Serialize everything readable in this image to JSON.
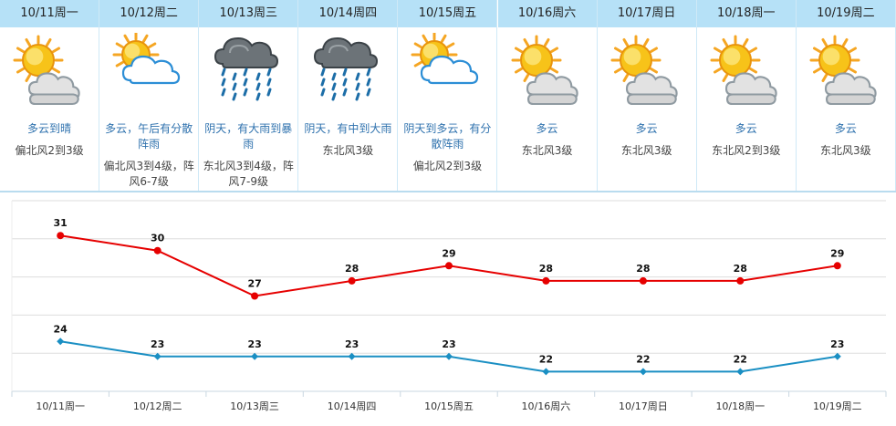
{
  "days": [
    {
      "date": "10/11周一",
      "desc": "多云到晴",
      "wind": "偏北风2到3级",
      "icon": "sun-cloud-icon"
    },
    {
      "date": "10/12周二",
      "desc": "多云，午后有分散阵雨",
      "wind": "偏北风3到4级，阵风6-7级",
      "icon": "sun-cloud-icon"
    },
    {
      "date": "10/13周三",
      "desc": "阴天，有大雨到暴雨",
      "wind": "东北风3到4级，阵风7-9级",
      "icon": "rain-icon"
    },
    {
      "date": "10/14周四",
      "desc": "阴天，有中到大雨",
      "wind": "东北风3级",
      "icon": "rain-icon"
    },
    {
      "date": "10/15周五",
      "desc": "阴天到多云，有分散阵雨",
      "wind": "偏北风2到3级",
      "icon": "sun-cloud-icon"
    },
    {
      "date": "10/16周六",
      "desc": "多云",
      "wind": "东北风3级",
      "icon": "sun-cloud-icon"
    },
    {
      "date": "10/17周日",
      "desc": "多云",
      "wind": "东北风3级",
      "icon": "sun-cloud-icon"
    },
    {
      "date": "10/18周一",
      "desc": "多云",
      "wind": "东北风2到3级",
      "icon": "sun-cloud-icon"
    },
    {
      "date": "10/19周二",
      "desc": "多云",
      "wind": "东北风3级",
      "icon": "sun-cloud-icon"
    }
  ],
  "chart_data": {
    "type": "line",
    "title": "",
    "xlabel": "",
    "ylabel": "",
    "categories": [
      "10/11周一",
      "10/12周二",
      "10/13周三",
      "10/14周四",
      "10/15周五",
      "10/16周六",
      "10/17周日",
      "10/18周一",
      "10/19周二"
    ],
    "series": [
      {
        "name": "",
        "values": [
          31,
          30,
          27,
          28,
          29,
          28,
          28,
          28,
          29
        ],
        "color": "#e60000",
        "marker": "circle"
      },
      {
        "name": "",
        "values": [
          24,
          23,
          23,
          23,
          23,
          22,
          22,
          22,
          23
        ],
        "color": "#1a8fc3",
        "marker": "diamond"
      }
    ],
    "ylim": [
      20.7,
      33.3
    ],
    "grid": true,
    "grid_color": "#dddddd",
    "data_labels": true
  }
}
